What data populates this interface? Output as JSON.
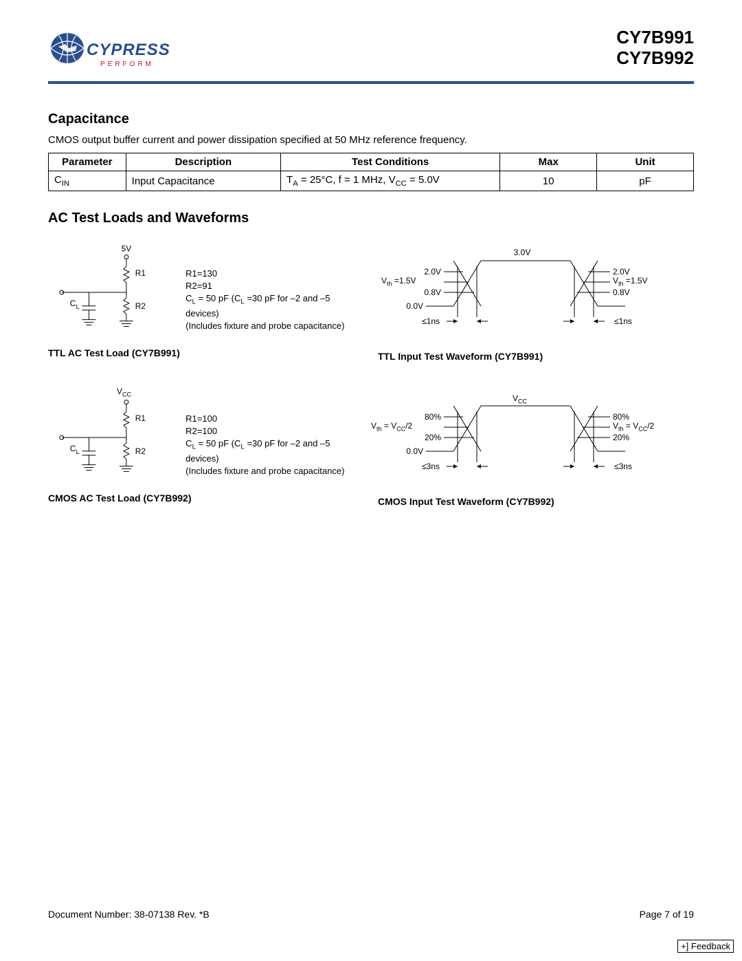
{
  "header": {
    "brand": "CYPRESS",
    "tagline": "P E R F O R M",
    "part1": "CY7B991",
    "part2": "CY7B992"
  },
  "capacitance": {
    "title": "Capacitance",
    "intro": "CMOS output buffer current and power dissipation specified at 50 MHz reference frequency.",
    "columns": [
      "Parameter",
      "Description",
      "Test Conditions",
      "Max",
      "Unit"
    ],
    "rows": [
      {
        "param_html": "C<sub>IN</sub>",
        "desc": "Input Capacitance",
        "cond_html": "T<sub>A</sub> = 25°C, f = 1 MHz, V<sub>CC</sub> = 5.0V",
        "max": "10",
        "unit": "pF"
      }
    ]
  },
  "ac_section": {
    "title": "AC Test Loads and Waveforms"
  },
  "ttl_load": {
    "vtop": "5V",
    "r1_label": "R1",
    "r2_label": "R2",
    "cl_label_html": "C<sub>L</sub>",
    "note1": "R1=130",
    "note2": "R2=91",
    "note3_html": "C<sub>L</sub> =  50 pF (C<sub>L</sub> =30 pF for –2 and –5 devices)",
    "note4": "(Includes fixture and probe capacitance)",
    "caption": "TTL AC Test Load (CY7B991)"
  },
  "ttl_wave": {
    "top": "3.0V",
    "l1": "2.0V",
    "l2_html": "V<sub>th</sub> =1.5V",
    "l3": "0.8V",
    "l4": "0.0V",
    "r1": "2.0V",
    "r2_html": "V<sub>th</sub> =1.5V",
    "r3": "0.8V",
    "timing": "≤1ns",
    "caption": "TTL Input Test Waveform (CY7B991)"
  },
  "cmos_load": {
    "vtop_html": "V<sub>CC</sub>",
    "r1_label": "R1",
    "r2_label": "R2",
    "cl_label_html": "C<sub>L</sub>",
    "note1": "R1=100",
    "note2": "R2=100",
    "note3_html": "C<sub>L</sub> =  50 pF (C<sub>L</sub> =30 pF for –2 and –5 devices)",
    "note4": "(Includes fixture and probe capacitance)",
    "caption": "CMOS AC Test Load (CY7B992)"
  },
  "cmos_wave": {
    "top_html": "V<sub>CC</sub>",
    "l1": "80%",
    "l2_html": "V<sub>th</sub> =  V<sub>CC</sub>/2",
    "l3": "20%",
    "l4": "0.0V",
    "r1": "80%",
    "r2_html": "V<sub>th</sub> =  V<sub>CC</sub>/2",
    "r3": "20%",
    "timing": "≤3ns",
    "caption": "CMOS Input Test Waveform (CY7B992)"
  },
  "footer": {
    "docnum": "Document Number: 38-07138  Rev. *B",
    "page": "Page 7 of 19",
    "feedback": "+] Feedback"
  },
  "colors": {
    "rule": "#2a4e8c",
    "logo_blue": "#2a4e8c",
    "logo_red": "#c8102e"
  }
}
